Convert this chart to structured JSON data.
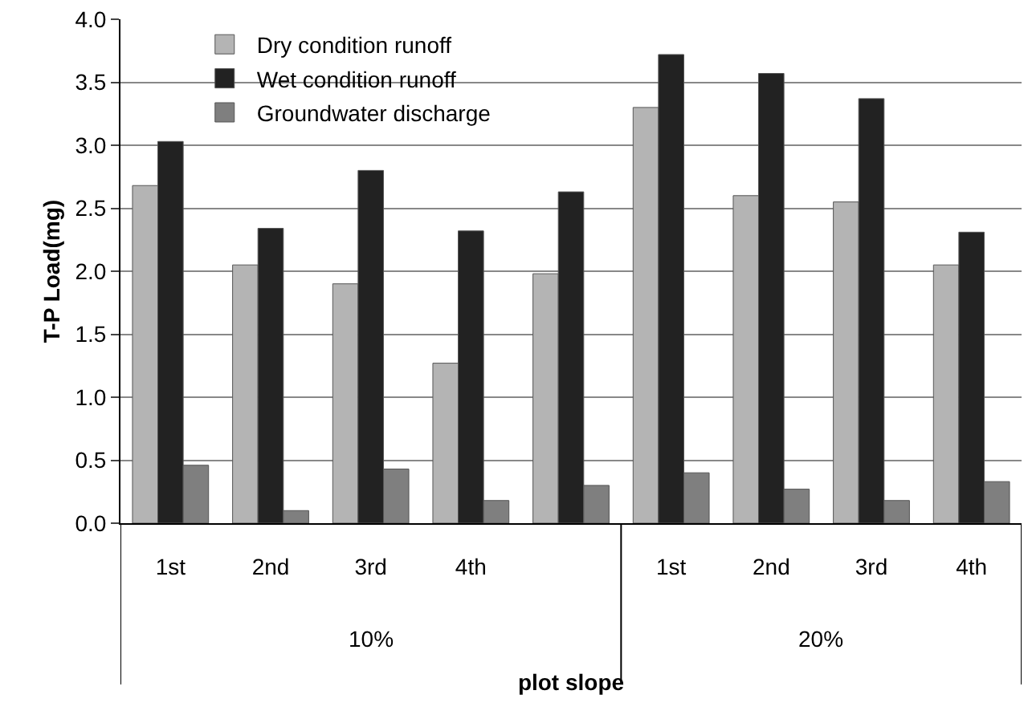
{
  "chart_data": {
    "type": "bar",
    "xlabel": "plot slope",
    "ylabel": "T-P Load(mg)",
    "categories": [
      "1st",
      "2nd",
      "3rd",
      "4th",
      null,
      "1st",
      "2nd",
      "3rd",
      "4th"
    ],
    "series": [
      {
        "name": "Dry condition runoff",
        "color": "#b4b4b4",
        "values": [
          2.68,
          2.05,
          1.9,
          1.27,
          1.98,
          3.3,
          2.6,
          2.55,
          2.05
        ]
      },
      {
        "name": "Wet condition runoff",
        "color": "#222222",
        "values": [
          3.03,
          2.34,
          2.8,
          2.32,
          2.63,
          3.72,
          3.57,
          3.37,
          2.31
        ]
      },
      {
        "name": "Groundwater discharge",
        "color": "#7f7f7f",
        "values": [
          0.46,
          0.1,
          0.43,
          0.18,
          0.3,
          0.4,
          0.27,
          0.18,
          0.33
        ]
      }
    ],
    "ylim": [
      0,
      4
    ],
    "yticks": [
      {
        "value": 0,
        "label": "0.0"
      },
      {
        "value": 0.5,
        "label": "0.5"
      },
      {
        "value": 1,
        "label": "1.0"
      },
      {
        "value": 1.5,
        "label": "1.5"
      },
      {
        "value": 2,
        "label": "2.0"
      },
      {
        "value": 2.5,
        "label": "2.5"
      },
      {
        "value": 3,
        "label": "3.0"
      },
      {
        "value": 3.5,
        "label": "3.5"
      },
      {
        "value": 4,
        "label": "4.0"
      }
    ],
    "grid": "y",
    "legend": "top left",
    "annotations": [
      "10%",
      "20%"
    ]
  }
}
